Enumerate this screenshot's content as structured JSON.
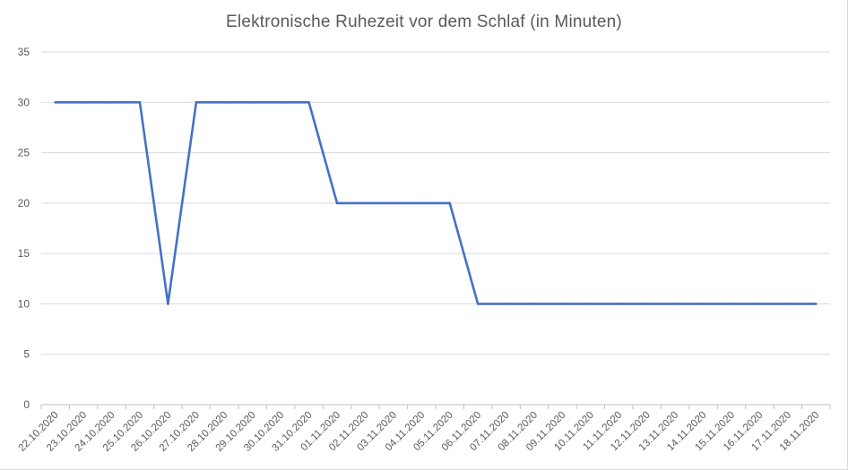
{
  "chart_data": {
    "type": "line",
    "title": "Elektronische Ruhezeit vor dem Schlaf (in Minuten)",
    "xlabel": "",
    "ylabel": "",
    "ylim": [
      0,
      35
    ],
    "yticks": [
      "0",
      "5",
      "10",
      "15",
      "20",
      "25",
      "30",
      "35"
    ],
    "grid": true,
    "legend": "none",
    "color": "#4472c4",
    "categories": [
      "22.10.2020",
      "23.10.2020",
      "24.10.2020",
      "25.10.2020",
      "26.10.2020",
      "27.10.2020",
      "28.10.2020",
      "29.10.2020",
      "30.10.2020",
      "31.10.2020",
      "01.11.2020",
      "02.11.2020",
      "03.11.2020",
      "04.11.2020",
      "05.11.2020",
      "06.11.2020",
      "07.11.2020",
      "08.11.2020",
      "09.11.2020",
      "10.11.2020",
      "11.11.2020",
      "12.11.2020",
      "13.11.2020",
      "14.11.2020",
      "15.11.2020",
      "16.11.2020",
      "17.11.2020",
      "18.11.2020"
    ],
    "series": [
      {
        "values": [
          30,
          30,
          30,
          30,
          10,
          30,
          30,
          30,
          30,
          30,
          20,
          20,
          20,
          20,
          20,
          10,
          10,
          10,
          10,
          10,
          10,
          10,
          10,
          10,
          10,
          10,
          10,
          10
        ]
      }
    ]
  }
}
